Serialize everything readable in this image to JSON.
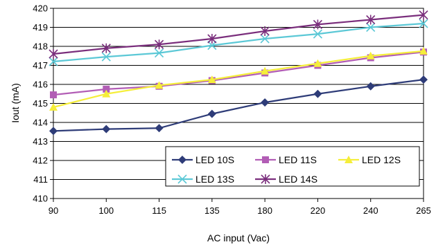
{
  "chart_data": {
    "type": "line",
    "title": "",
    "xlabel": "AC input (Vac)",
    "ylabel": "Iout (mA)",
    "categories": [
      "90",
      "100",
      "115",
      "135",
      "180",
      "220",
      "240",
      "265"
    ],
    "ylim": [
      410,
      420
    ],
    "ytick_step": 1,
    "grid": "horizontal",
    "legend_position": "bottom-right inside plot",
    "series": [
      {
        "name": "LED 10S",
        "color": "#2E3C78",
        "marker": "diamond",
        "values": [
          413.55,
          413.65,
          413.7,
          414.45,
          415.05,
          415.5,
          415.9,
          416.25
        ]
      },
      {
        "name": "LED 11S",
        "color": "#B25DB5",
        "marker": "square",
        "values": [
          415.45,
          415.75,
          415.9,
          416.2,
          416.6,
          417.0,
          417.4,
          417.7
        ]
      },
      {
        "name": "LED 12S",
        "color": "#F5EE3A",
        "marker": "triangle",
        "values": [
          414.8,
          415.5,
          415.95,
          416.25,
          416.7,
          417.1,
          417.5,
          417.75
        ]
      },
      {
        "name": "LED 13S",
        "color": "#5BC8D6",
        "marker": "x",
        "values": [
          417.2,
          417.45,
          417.65,
          418.05,
          418.4,
          418.65,
          419.0,
          419.2
        ]
      },
      {
        "name": "LED 14S",
        "color": "#7A2E7C",
        "marker": "asterisk",
        "values": [
          417.6,
          417.9,
          418.1,
          418.4,
          418.8,
          419.15,
          419.4,
          419.65
        ]
      }
    ]
  }
}
